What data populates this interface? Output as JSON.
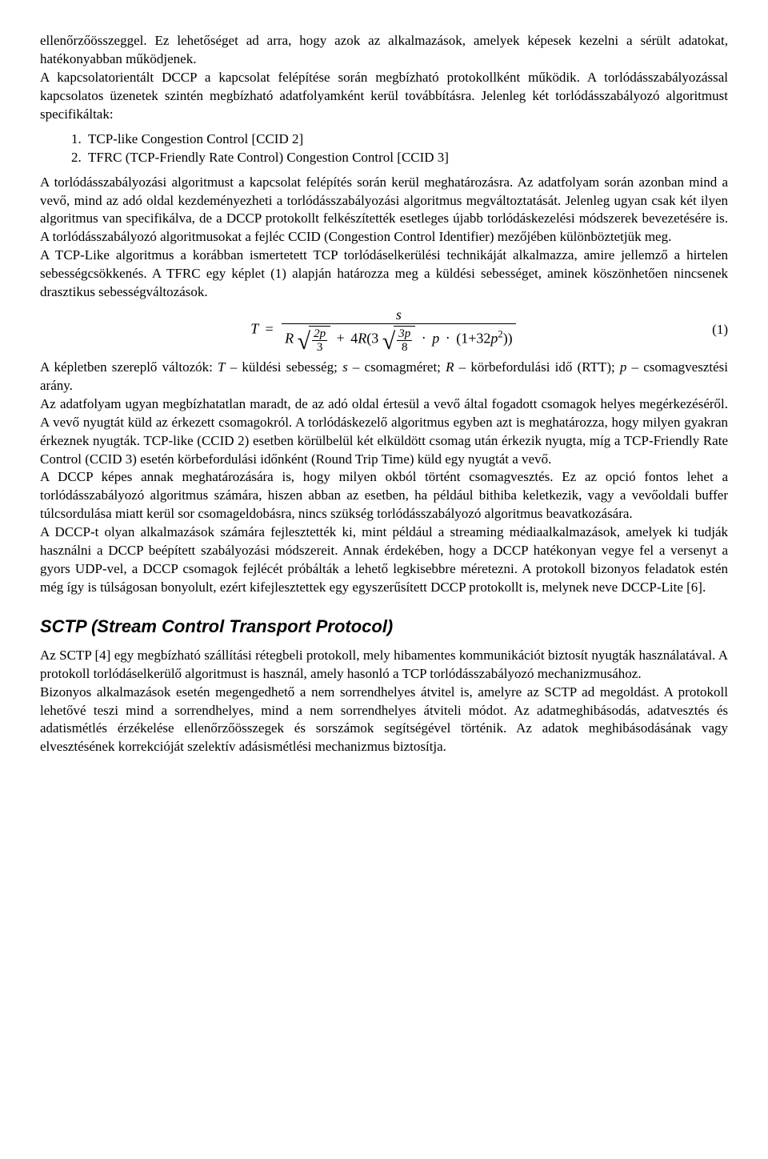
{
  "paragraphs": {
    "p1": "ellenőrzőösszeggel. Ez lehetőséget ad arra, hogy azok az alkalmazások, amelyek képesek kezelni a sérült adatokat, hatékonyabban működjenek.",
    "p2": "A kapcsolatorientált DCCP a kapcsolat felépítése során megbízható protokollként működik. A torlódásszabályozással kapcsolatos üzenetek szintén megbízható adatfolyamként kerül továbbításra. Jelenleg két torlódásszabályozó algoritmust specifikáltak:",
    "list1": "TCP-like Congestion Control [CCID 2]",
    "list2": "TFRC (TCP-Friendly Rate Control) Congestion Control [CCID 3]",
    "p3": "A torlódásszabályozási algoritmust a kapcsolat felépítés során kerül meghatározásra. Az adatfolyam során azonban mind a vevő, mind az adó oldal kezdeményezheti a torlódásszabályozási algoritmus megváltoztatását. Jelenleg ugyan csak két ilyen algoritmus van specifikálva, de a DCCP protokollt felkészítették esetleges újabb torlódáskezelési módszerek bevezetésére is. A torlódásszabályozó algoritmusokat a fejléc CCID (Congestion Control Identifier) mezőjében különböztetjük meg.",
    "p4": "A TCP-Like algoritmus a korábban ismertetett TCP torlódáselkerülési technikáját alkalmazza, amire jellemző a hirtelen sebességcsökkenés. A TFRC egy képlet (1) alapján határozza meg a küldési sebességet, aminek köszönhetően nincsenek drasztikus sebességváltozások.",
    "p5a": "A képletben szereplő változók: ",
    "p5_T": "T",
    "p5b": " – küldési sebesség; ",
    "p5_s": "s",
    "p5c": " – csomagméret; ",
    "p5_R": "R",
    "p5d": " – körbefordulási idő (RTT); ",
    "p5_p": "p",
    "p5e": " – csomagvesztési arány.",
    "p6": "Az adatfolyam ugyan megbízhatatlan maradt, de az adó oldal értesül a vevő által fogadott csomagok helyes megérkezéséről. A vevő nyugtát küld az érkezett csomagokról. A torlódáskezelő algoritmus egyben azt is meghatározza, hogy milyen gyakran érkeznek nyugták. TCP-like (CCID 2) esetben körülbelül két elküldött csomag után érkezik nyugta, míg a TCP-Friendly Rate Control (CCID 3) esetén körbefordulási időnként (Round Trip Time) küld egy nyugtát a vevő.",
    "p7": "A DCCP képes annak meghatározására is, hogy milyen okból történt csomagvesztés. Ez az opció fontos lehet a torlódásszabályozó algoritmus számára, hiszen abban az esetben, ha például bithiba keletkezik, vagy a vevőoldali buffer túlcsordulása miatt kerül sor csomageldobásra, nincs szükség torlódásszabályozó algoritmus beavatkozására.",
    "p8": "A DCCP-t olyan alkalmazások számára fejlesztették ki, mint például a streaming médiaalkalmazások, amelyek ki tudják használni a DCCP beépített szabályozási módszereit. Annak érdekében, hogy a DCCP hatékonyan vegye fel a versenyt a gyors UDP-vel, a DCCP csomagok fejlécét próbálták a lehető legkisebbre méretezni. A protokoll bizonyos feladatok estén még így is túlságosan bonyolult, ezért kifejlesztettek egy egyszerűsített DCCP protokollt is, melynek neve DCCP-Lite [6].",
    "section_title": "SCTP (Stream Control Transport Protocol)",
    "p9": "Az SCTP [4] egy megbízható szállítási rétegbeli protokoll, mely hibamentes kommunikációt biztosít nyugták használatával. A protokoll torlódáselkerülő algoritmust is használ, amely hasonló a TCP torlódásszabályozó mechanizmusához.",
    "p10": "Bizonyos alkalmazások esetén megengedhető a nem sorrendhelyes átvitel is, amelyre az SCTP ad megoldást. A protokoll lehetővé teszi mind a sorrendhelyes, mind a nem sorrendhelyes átviteli módot. Az adatmeghibásodás, adatvesztés és adatismétlés érzékelése ellenőrzőösszegek és sorszámok segítségével történik. Az adatok meghibásodásának vagy elvesztésének korrekcióját szelektív adásismétlési mechanizmus biztosítja."
  },
  "equation": {
    "number": "(1)",
    "T": "T",
    "eq": "=",
    "s": "s",
    "R": "R",
    "two_p": "2p",
    "three": "3",
    "plus": "+",
    "four": "4",
    "three_p": "3p",
    "eight": "8",
    "dot": "·",
    "p": "p",
    "open": "(1",
    "plus2": "+",
    "thirtytwo": "32",
    "p2": "p",
    "sq": "2",
    "close": "))"
  }
}
